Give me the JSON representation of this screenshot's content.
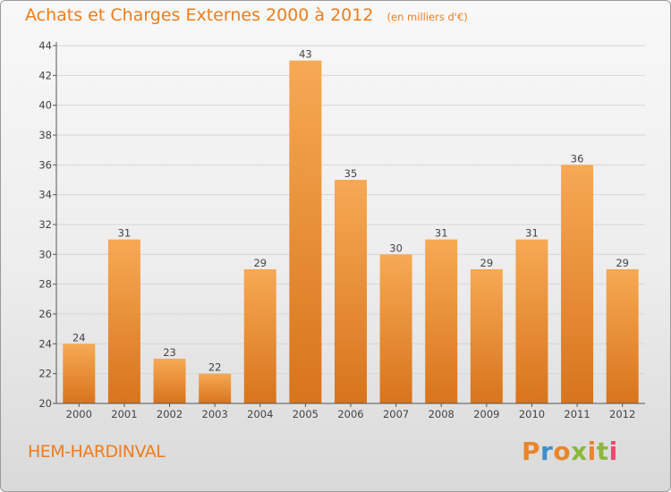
{
  "header": {
    "title": "Achats et Charges Externes 2000 à 2012",
    "subtitle": "(en milliers d'€)"
  },
  "footer": {
    "city": "HEM-HARDINVAL",
    "logo_text": "Proxiti",
    "logo_colors": [
      "#e9862a",
      "#3f8fc8",
      "#e9862a",
      "#89b83a",
      "#e9862a",
      "#89b83a",
      "#e94b6f"
    ]
  },
  "colors": {
    "bar_light": "#f7a954",
    "bar_dark": "#d8741c",
    "grid": "#d6d6d6",
    "axis": "#555555",
    "text": "#444444",
    "accent": "#ee7d1c"
  },
  "chart_data": {
    "type": "bar",
    "title": "Achats et Charges Externes 2000 à 2012",
    "subtitle": "(en milliers d'€)",
    "categories": [
      "2000",
      "2001",
      "2002",
      "2003",
      "2004",
      "2005",
      "2006",
      "2007",
      "2008",
      "2009",
      "2010",
      "2011",
      "2012"
    ],
    "values": [
      24,
      31,
      23,
      22,
      29,
      43,
      35,
      30,
      31,
      29,
      31,
      36,
      29
    ],
    "yticks": [
      20,
      22,
      24,
      26,
      28,
      30,
      32,
      34,
      36,
      38,
      40,
      42,
      44
    ],
    "ylim": [
      20,
      44
    ],
    "grid": true,
    "data_labels": true
  }
}
